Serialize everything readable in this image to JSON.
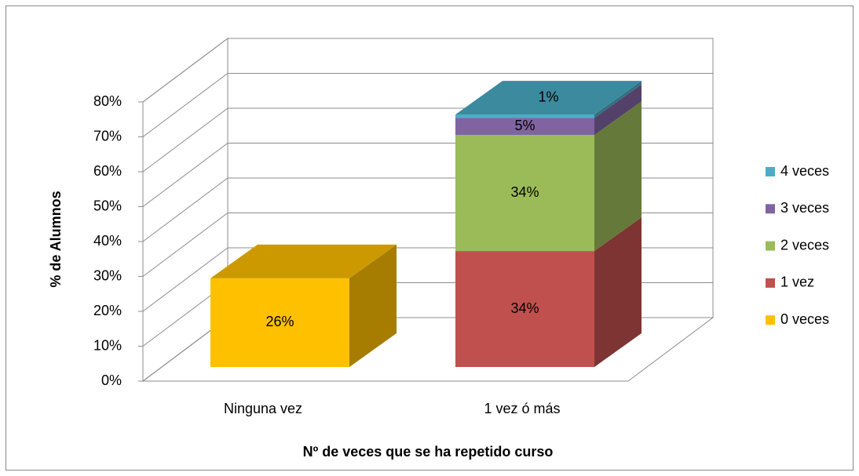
{
  "chart_data": {
    "type": "bar3d_stacked",
    "x_label": "Nº de veces que se ha repetido curso",
    "y_label": "% de Alumnos",
    "categories": [
      "Ninguna vez",
      "1 vez ó más"
    ],
    "series": [
      {
        "name": "0 veces",
        "color": "#ffc000",
        "values": [
          26,
          null
        ],
        "value_labels": [
          "26%",
          null
        ]
      },
      {
        "name": "1 vez",
        "color": "#c0504d",
        "values": [
          null,
          34
        ],
        "value_labels": [
          null,
          "34%"
        ]
      },
      {
        "name": "2 veces",
        "color": "#9bbb59",
        "values": [
          null,
          34
        ],
        "value_labels": [
          null,
          "34%"
        ]
      },
      {
        "name": "3 veces",
        "color": "#8064a2",
        "values": [
          null,
          5
        ],
        "value_labels": [
          null,
          "5%"
        ]
      },
      {
        "name": "4 veces",
        "color": "#4bacc6",
        "values": [
          null,
          1
        ],
        "value_labels": [
          null,
          "1%"
        ]
      }
    ],
    "ylim": [
      0,
      80
    ],
    "yticks": [
      {
        "value": 0,
        "label": "0%"
      },
      {
        "value": 10,
        "label": "10%"
      },
      {
        "value": 20,
        "label": "20%"
      },
      {
        "value": 30,
        "label": "30%"
      },
      {
        "value": 40,
        "label": "40%"
      },
      {
        "value": 50,
        "label": "50%"
      },
      {
        "value": 60,
        "label": "60%"
      },
      {
        "value": 70,
        "label": "70%"
      },
      {
        "value": 80,
        "label": "80%"
      }
    ],
    "grid": true,
    "legend": "right"
  }
}
